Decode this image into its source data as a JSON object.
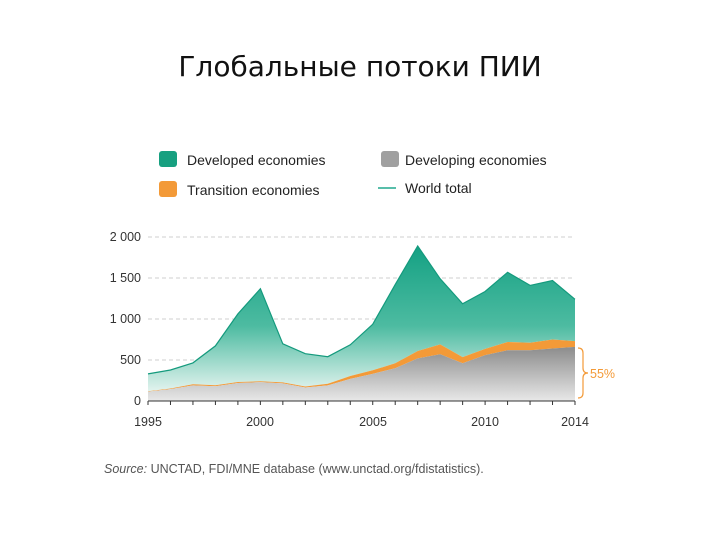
{
  "slide": {
    "title": "Глобальные потоки ПИИ"
  },
  "source": {
    "label": "Source:",
    "text": "UNCTAD, FDI/MNE database (www.unctad.org/fdistatistics)."
  },
  "chart_data": {
    "type": "area",
    "stacked": true,
    "x": [
      1995,
      1996,
      1997,
      1998,
      1999,
      2000,
      2001,
      2002,
      2003,
      2004,
      2005,
      2006,
      2007,
      2008,
      2009,
      2010,
      2011,
      2012,
      2013,
      2014
    ],
    "series": [
      {
        "name": "Developing economies",
        "color": "#a0a0a0",
        "values": [
          115,
          145,
          190,
          180,
          220,
          230,
          215,
          165,
          190,
          270,
          330,
          400,
          520,
          570,
          460,
          560,
          620,
          620,
          640,
          660
        ]
      },
      {
        "name": "Transition economies",
        "color": "#f39a38",
        "values": [
          5,
          8,
          15,
          12,
          12,
          10,
          12,
          12,
          20,
          35,
          45,
          60,
          90,
          120,
          75,
          75,
          100,
          90,
          110,
          70
        ]
      },
      {
        "name": "Developed economies",
        "color": "#1aa386",
        "values": [
          210,
          225,
          260,
          480,
          830,
          1130,
          470,
          400,
          330,
          380,
          560,
          960,
          1280,
          800,
          650,
          700,
          850,
          700,
          720,
          510
        ]
      }
    ],
    "total": {
      "name": "World total",
      "values": [
        330,
        378,
        465,
        672,
        1062,
        1370,
        697,
        577,
        540,
        685,
        935,
        1420,
        1890,
        1490,
        1185,
        1335,
        1570,
        1410,
        1470,
        1240
      ]
    },
    "legend": [
      "Developed economies",
      "Developing economies",
      "Transition economies",
      "World total"
    ],
    "legend_position": "top",
    "y_ticks": [
      "0",
      "500",
      "1 000",
      "1 500",
      "2 000"
    ],
    "x_ticks": [
      "1995",
      "2000",
      "2005",
      "2010",
      "2014"
    ],
    "ylim": [
      0,
      2000
    ],
    "grid": "dashed horizontal",
    "annotation": {
      "text": "55%",
      "color": "#f39a38"
    }
  }
}
